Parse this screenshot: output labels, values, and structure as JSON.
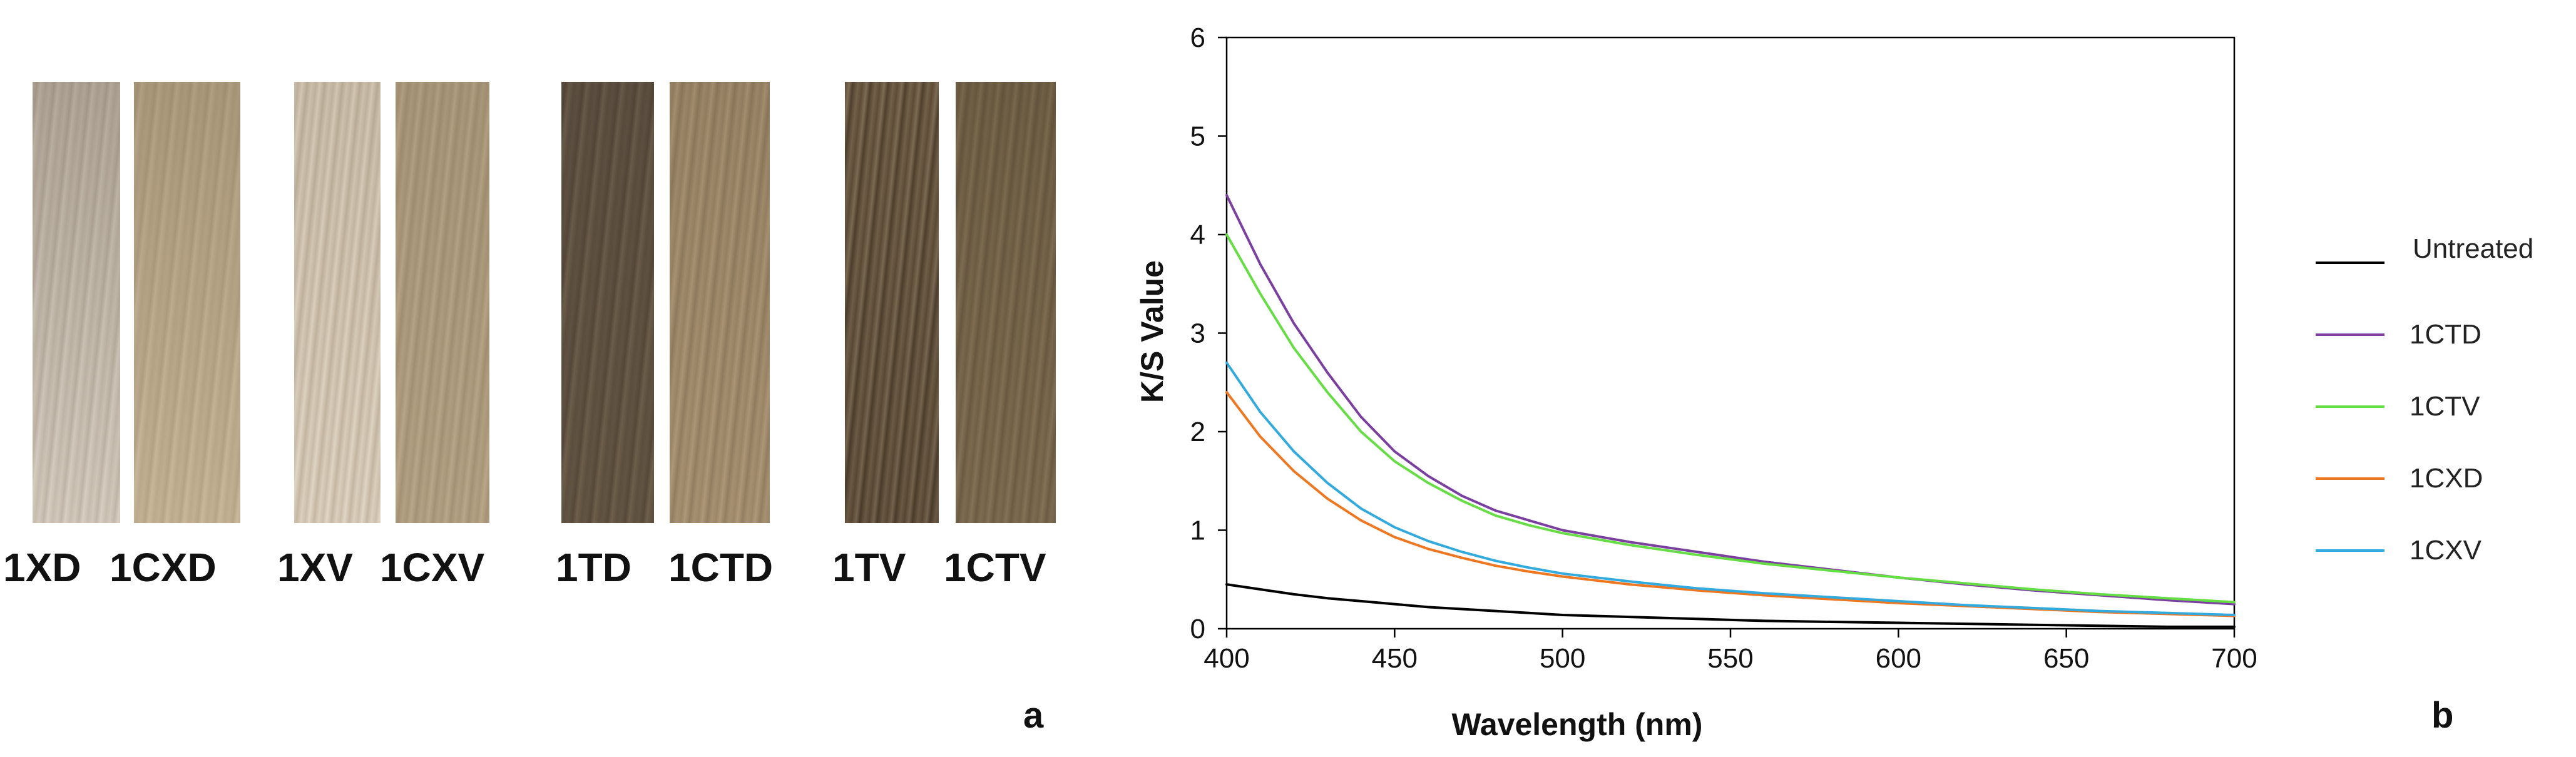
{
  "panel_a": {
    "letter": "a",
    "samples": [
      {
        "label": "1XD",
        "colors": [
          "#e3ddd4",
          "#cfc7bd",
          "#eae5de",
          "#d6cfc5",
          "#bfb7ac"
        ]
      },
      {
        "label": "1CXD",
        "colors": [
          "#d9cdb8",
          "#cbbfa9",
          "#e2d7c4",
          "#d1c5b0",
          "#c3b69f"
        ]
      },
      {
        "label": "1XV",
        "colors": [
          "#e8e2d6",
          "#d6cdbf",
          "#efe9df",
          "#cfc5b5",
          "#ddd5c8"
        ]
      },
      {
        "label": "1CXV",
        "colors": [
          "#cfc3ae",
          "#c2b69f",
          "#d8ccb8",
          "#bdb099",
          "#cabe a8"
        ]
      },
      {
        "label": "1TD",
        "colors": [
          "#8e8170",
          "#7a6d5c",
          "#a29583",
          "#857866",
          "#96897a"
        ]
      },
      {
        "label": "1CTD",
        "colors": [
          "#c7b8a0",
          "#b8a98f",
          "#d1c2ab",
          "#ad9e86",
          "#bfb098"
        ]
      },
      {
        "label": "1TV",
        "colors": [
          "#9b8a72",
          "#d8cfc2",
          "#7f6f59",
          "#c4b8a6",
          "#8c7b64"
        ]
      },
      {
        "label": "1CTV",
        "colors": [
          "#a89a82",
          "#978970",
          "#b4a68e",
          "#8e8068",
          "#a09278"
        ]
      }
    ]
  },
  "panel_b": {
    "letter": "b"
  },
  "chart_data": {
    "type": "line",
    "title": "",
    "xlabel": "Wavelength (nm)",
    "ylabel": "K/S Value",
    "xlim": [
      400,
      700
    ],
    "ylim": [
      0,
      6
    ],
    "xticks": [
      400,
      450,
      500,
      550,
      600,
      650,
      700
    ],
    "yticks": [
      0,
      1,
      2,
      3,
      4,
      5,
      6
    ],
    "grid": false,
    "legend_position": "right",
    "x": [
      400,
      410,
      420,
      430,
      440,
      450,
      460,
      470,
      480,
      490,
      500,
      520,
      540,
      560,
      580,
      600,
      620,
      640,
      660,
      680,
      700
    ],
    "series": [
      {
        "name": "Untreated",
        "color": "#000000",
        "values": [
          0.45,
          0.4,
          0.35,
          0.31,
          0.28,
          0.25,
          0.22,
          0.2,
          0.18,
          0.16,
          0.14,
          0.12,
          0.1,
          0.08,
          0.07,
          0.06,
          0.05,
          0.04,
          0.03,
          0.02,
          0.02
        ]
      },
      {
        "name": "1CTD",
        "color": "#7b3fa0",
        "values": [
          4.4,
          3.7,
          3.1,
          2.6,
          2.15,
          1.8,
          1.55,
          1.35,
          1.2,
          1.1,
          1.0,
          0.88,
          0.78,
          0.68,
          0.6,
          0.52,
          0.45,
          0.39,
          0.34,
          0.29,
          0.25
        ]
      },
      {
        "name": "1CTV",
        "color": "#66dd44",
        "values": [
          4.0,
          3.4,
          2.85,
          2.4,
          2.0,
          1.7,
          1.48,
          1.3,
          1.15,
          1.05,
          0.97,
          0.85,
          0.75,
          0.66,
          0.59,
          0.52,
          0.46,
          0.4,
          0.35,
          0.31,
          0.27
        ]
      },
      {
        "name": "1CXD",
        "color": "#ee7722",
        "values": [
          2.4,
          1.95,
          1.6,
          1.32,
          1.1,
          0.93,
          0.81,
          0.72,
          0.64,
          0.58,
          0.53,
          0.45,
          0.39,
          0.34,
          0.3,
          0.26,
          0.23,
          0.2,
          0.17,
          0.15,
          0.13
        ]
      },
      {
        "name": "1CXV",
        "color": "#33aadd",
        "values": [
          2.7,
          2.2,
          1.8,
          1.48,
          1.22,
          1.03,
          0.89,
          0.78,
          0.69,
          0.62,
          0.56,
          0.48,
          0.41,
          0.36,
          0.32,
          0.28,
          0.24,
          0.21,
          0.18,
          0.16,
          0.14
        ]
      }
    ]
  }
}
